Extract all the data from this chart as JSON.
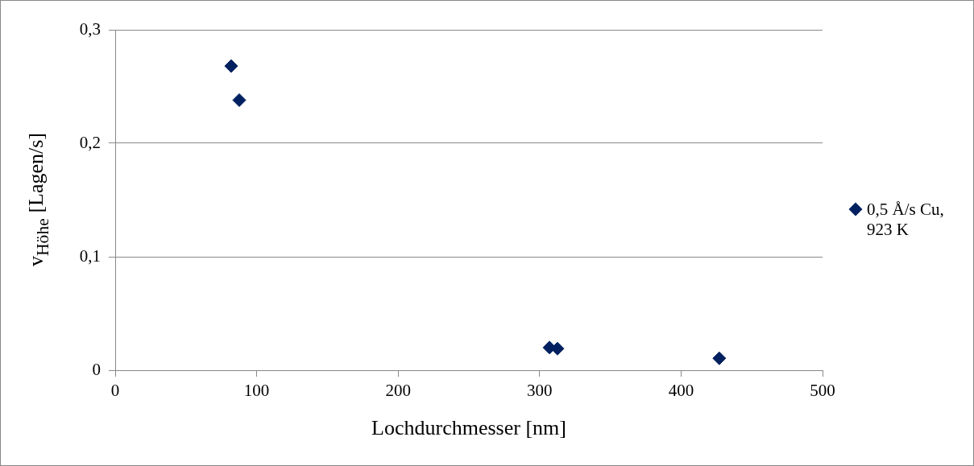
{
  "chart_data": {
    "type": "scatter",
    "xlabel": "Lochdurchmesser [nm]",
    "ylabel": "v$_{Höhe}$ [Lagen/s]",
    "series": [
      {
        "name": "0,5 Å/s Cu, 923 K",
        "color": "#002060",
        "x": [
          82,
          87.7,
          307,
          312.6,
          427
        ],
        "values": [
          0.268,
          0.238,
          0.02,
          0.019,
          0.0105
        ]
      }
    ],
    "xlim": [
      0,
      500
    ],
    "xticks": [
      0,
      100,
      200,
      300,
      400,
      500
    ],
    "ylim": [
      0,
      0.3
    ],
    "yticks": [
      0,
      {
        "value": 0.1,
        "label": "0,1"
      },
      {
        "value": 0.2,
        "label": "0,2"
      },
      {
        "value": 0.3,
        "label": "0,3"
      }
    ],
    "grid": "y",
    "legend": "right",
    "marker": "diamond"
  }
}
